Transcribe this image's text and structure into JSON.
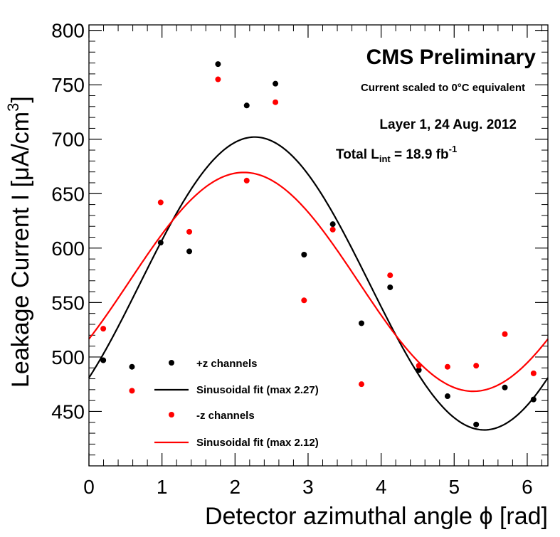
{
  "chart_data": {
    "type": "scatter",
    "title": "CMS Preliminary",
    "subtitle": "Current scaled to 0°C equivalent",
    "annotations": {
      "layer": "Layer 1, 24 Aug. 2012",
      "lumi_prefix": "Total L",
      "lumi_sub": "int",
      "lumi_mid": " = 18.9 fb",
      "lumi_sup": "-1"
    },
    "xlabel": "Detector azimuthal angle ϕ [rad]",
    "ylabel_main": "Leakage Current I [μA/cm",
    "ylabel_sup": "3",
    "ylabel_close": "]",
    "xlim": [
      0,
      6.2832
    ],
    "ylim": [
      400,
      805
    ],
    "x_ticks": [
      0,
      1,
      2,
      3,
      4,
      5,
      6
    ],
    "x_tick_labels": [
      "0",
      "1",
      "2",
      "3",
      "4",
      "5",
      "6"
    ],
    "y_ticks": [
      450,
      500,
      550,
      600,
      650,
      700,
      750,
      800
    ],
    "y_tick_labels": [
      "450",
      "500",
      "550",
      "600",
      "650",
      "700",
      "750",
      "800"
    ],
    "series": [
      {
        "name": "+z channels",
        "color": "#000000",
        "x": [
          0.196,
          0.589,
          0.982,
          1.374,
          1.767,
          2.16,
          2.553,
          2.945,
          3.338,
          3.731,
          4.123,
          4.516,
          4.909,
          5.301,
          5.694,
          6.087
        ],
        "y": [
          497,
          491,
          605,
          597,
          769,
          731,
          751,
          594,
          622,
          531,
          564,
          488,
          464,
          438,
          472,
          461
        ]
      },
      {
        "name": "-z channels",
        "color": "#ff0000",
        "x": [
          0.196,
          0.589,
          0.982,
          1.374,
          1.767,
          2.16,
          2.553,
          2.945,
          3.338,
          3.731,
          4.123,
          4.516,
          4.909,
          5.301,
          5.694,
          6.087
        ],
        "y": [
          526,
          469,
          642,
          615,
          755,
          662,
          734,
          552,
          617,
          475,
          575,
          492,
          491,
          492,
          521,
          485
        ]
      }
    ],
    "fits": [
      {
        "name": "Sinusoidal fit (max 2.27)",
        "color": "#000000",
        "mean": 567.5,
        "amplitude": 134.5,
        "max_at": 2.27
      },
      {
        "name": "Sinusoidal fit (max 2.12)",
        "color": "#ff0000",
        "mean": 569.0,
        "amplitude": 100.5,
        "max_at": 2.12
      }
    ],
    "legend": [
      {
        "label": "+z channels",
        "kind": "marker",
        "color": "#000000"
      },
      {
        "label": "Sinusoidal fit (max 2.27)",
        "kind": "line",
        "color": "#000000"
      },
      {
        "label": "-z channels",
        "kind": "marker",
        "color": "#ff0000"
      },
      {
        "label": "Sinusoidal fit (max 2.12)",
        "kind": "line",
        "color": "#ff0000"
      }
    ],
    "legend_position": "bottom-left"
  }
}
